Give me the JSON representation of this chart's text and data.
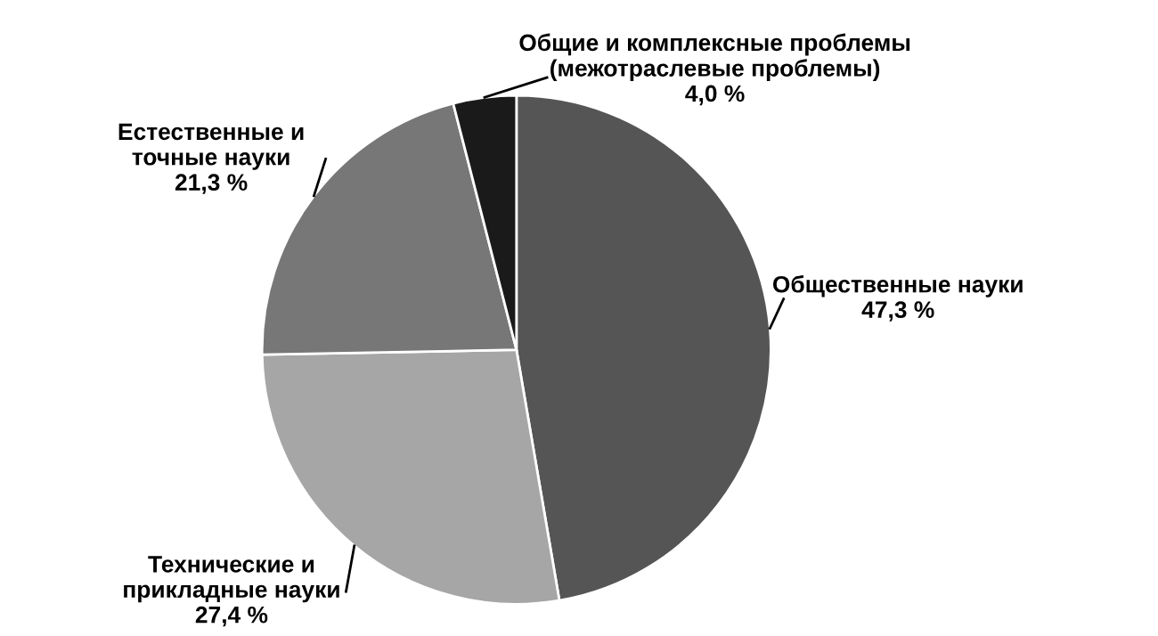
{
  "chart_data": {
    "type": "pie",
    "categories": [
      "Общественные науки",
      "Технические и\nприкладные науки",
      "Естественные и\nточные науки",
      "Общие и комплексные проблемы\n(межотраслевые проблемы)"
    ],
    "values": [
      47.3,
      27.4,
      21.3,
      4.0
    ],
    "value_labels": [
      "47,3 %",
      "27,4 %",
      "21,3 %",
      "4,0 %"
    ],
    "colors": [
      "#555555",
      "#a6a6a6",
      "#777777",
      "#1a1a1a"
    ]
  }
}
